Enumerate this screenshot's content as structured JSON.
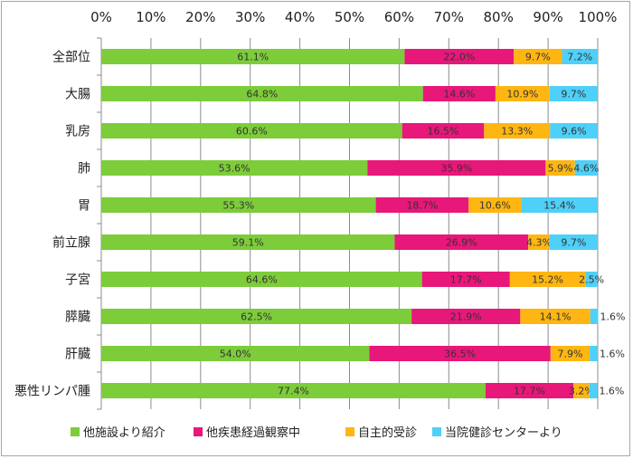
{
  "chart_data": {
    "type": "bar",
    "orientation": "horizontal",
    "stacked": true,
    "categories": [
      "全部位",
      "大腸",
      "乳房",
      "肺",
      "胃",
      "前立腺",
      "子宮",
      "膵臓",
      "肝臓",
      "悪性リンパ腫"
    ],
    "series": [
      {
        "name": "他施設より紹介",
        "color": "#7dcc3a",
        "values": [
          61.1,
          64.8,
          60.6,
          53.6,
          55.3,
          59.1,
          64.6,
          62.5,
          54.0,
          77.4
        ]
      },
      {
        "name": "他疾患経過観察中",
        "color": "#e8177a",
        "values": [
          22.0,
          14.6,
          16.5,
          35.9,
          18.7,
          26.9,
          17.7,
          21.9,
          36.5,
          17.7
        ]
      },
      {
        "name": "自主的受診",
        "color": "#ffb612",
        "values": [
          9.7,
          10.9,
          13.3,
          5.9,
          10.6,
          4.3,
          15.2,
          14.1,
          7.9,
          3.2
        ]
      },
      {
        "name": "当院健診センターより",
        "color": "#4fd0f8",
        "values": [
          7.2,
          9.7,
          9.6,
          4.6,
          15.4,
          9.7,
          2.5,
          1.6,
          1.6,
          1.6
        ]
      }
    ],
    "xlim": [
      0,
      100
    ],
    "xticks": [
      "0%",
      "10%",
      "20%",
      "30%",
      "40%",
      "50%",
      "60%",
      "70%",
      "80%",
      "90%",
      "100%"
    ],
    "grid": true,
    "legend": "bottom",
    "data_labels": true
  }
}
